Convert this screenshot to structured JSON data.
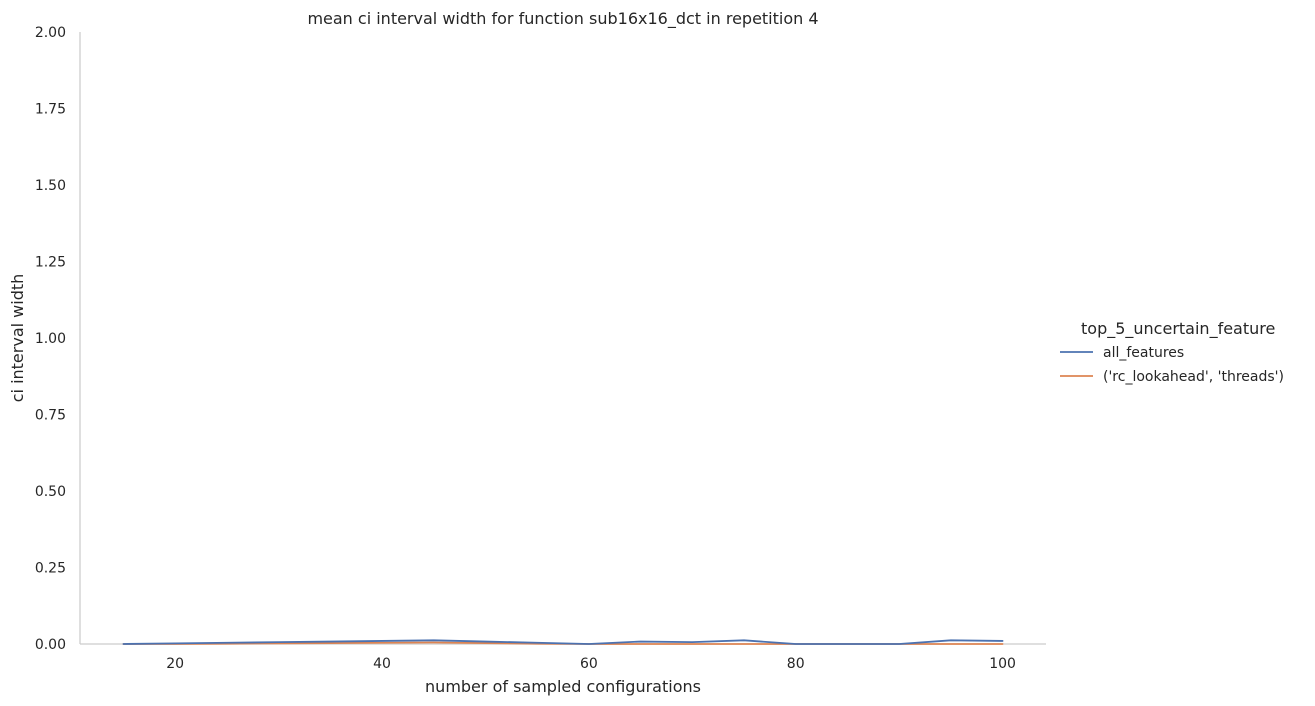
{
  "chart_data": {
    "type": "line",
    "title": "mean ci interval width for function sub16x16_dct in repetition 4",
    "xlabel": "number of sampled configurations",
    "ylabel": "ci interval width",
    "xlim": [
      10.8,
      104.2
    ],
    "ylim": [
      0,
      2
    ],
    "xticks": [
      20,
      40,
      60,
      80,
      100
    ],
    "yticks": [
      0.0,
      0.25,
      0.5,
      0.75,
      1.0,
      1.25,
      1.5,
      1.75,
      2.0
    ],
    "grid": false,
    "legend": {
      "title": "top_5_uncertain_feature",
      "placement": "right"
    },
    "series": [
      {
        "name": "all_features",
        "color": "#4c72b0",
        "x": [
          15,
          20,
          25,
          30,
          35,
          40,
          45,
          50,
          55,
          60,
          65,
          70,
          75,
          80,
          85,
          90,
          95,
          100
        ],
        "y": [
          0.0,
          0.002,
          0.004,
          0.006,
          0.008,
          0.01,
          0.012,
          0.008,
          0.004,
          0.0,
          0.008,
          0.006,
          0.012,
          0.0,
          0.0,
          0.0,
          0.012,
          0.01
        ]
      },
      {
        "name": "('rc_lookahead', 'threads')",
        "color": "#dd8452",
        "x": [
          15,
          20,
          25,
          30,
          35,
          40,
          45,
          50,
          55,
          60,
          65,
          70,
          75,
          80,
          85,
          90,
          95,
          100
        ],
        "y": [
          0.0,
          0.0,
          0.001,
          0.002,
          0.003,
          0.004,
          0.005,
          0.003,
          0.001,
          0.0,
          0.0,
          0.0,
          0.0,
          0.0,
          0.0,
          0.0,
          0.0,
          0.0
        ]
      }
    ]
  }
}
